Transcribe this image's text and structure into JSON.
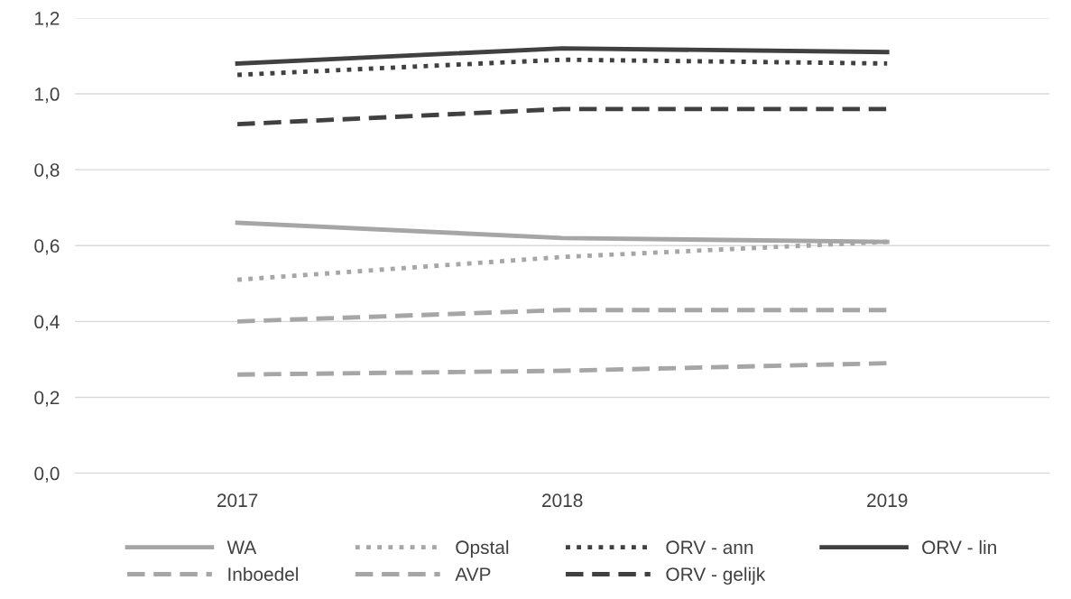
{
  "chart_data": {
    "type": "line",
    "categories": [
      "2017",
      "2018",
      "2019"
    ],
    "series": [
      {
        "name": "WA",
        "color": "#a6a6a6",
        "line_style": "solid",
        "values": [
          0.66,
          0.62,
          0.61
        ]
      },
      {
        "name": "Inboedel",
        "color": "#a6a6a6",
        "line_style": "dashed",
        "values": [
          0.4,
          0.43,
          0.43
        ]
      },
      {
        "name": "Opstal",
        "color": "#a6a6a6",
        "line_style": "dotted",
        "values": [
          0.51,
          0.57,
          0.61
        ]
      },
      {
        "name": "AVP",
        "color": "#a6a6a6",
        "line_style": "dashed",
        "values": [
          0.26,
          0.27,
          0.29
        ]
      },
      {
        "name": "ORV - ann",
        "color": "#404040",
        "line_style": "dotted",
        "values": [
          1.05,
          1.09,
          1.08
        ]
      },
      {
        "name": "ORV - gelijk",
        "color": "#404040",
        "line_style": "dashed",
        "values": [
          0.92,
          0.96,
          0.96
        ]
      },
      {
        "name": "ORV - lin",
        "color": "#404040",
        "line_style": "solid",
        "values": [
          1.08,
          1.12,
          1.11
        ]
      }
    ],
    "ylim": [
      0,
      1.2
    ],
    "yticks": [
      {
        "value": 0,
        "label": "0,0"
      },
      {
        "value": 0.2,
        "label": "0,2"
      },
      {
        "value": 0.4,
        "label": "0,4"
      },
      {
        "value": 0.6,
        "label": "0,6"
      },
      {
        "value": 0.8,
        "label": "0,8"
      },
      {
        "value": 1.0,
        "label": "1,0"
      },
      {
        "value": 1.2,
        "label": "1,2"
      }
    ],
    "grid": "y",
    "legend": "bottom",
    "marker": "none"
  }
}
